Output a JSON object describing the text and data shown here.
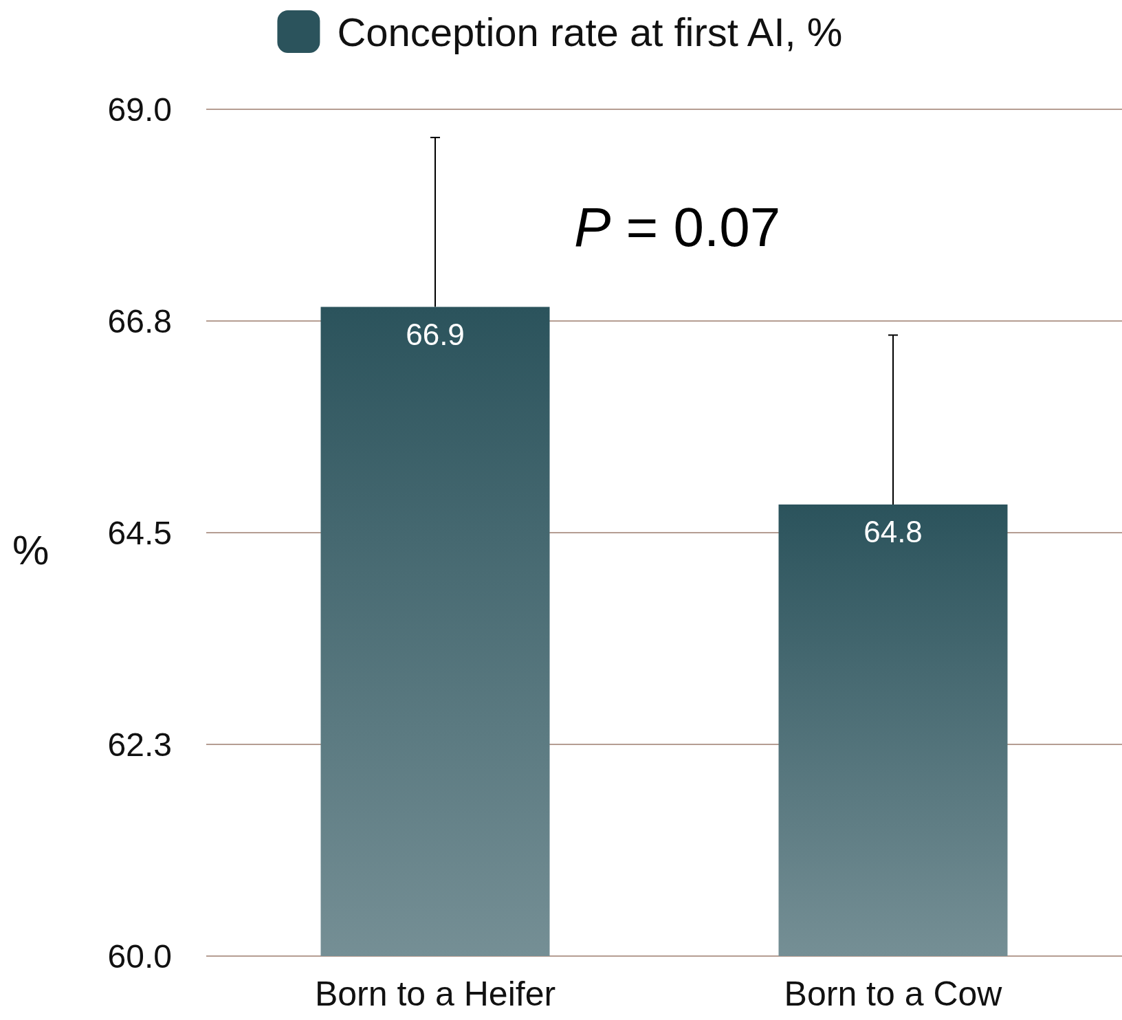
{
  "chart_data": {
    "type": "bar",
    "ylabel": "%",
    "categories": [
      "Born to a Heifer",
      "Born to a Cow"
    ],
    "series": [
      {
        "name": "Conception rate at first AI, %",
        "color": "#2b535c",
        "values": [
          66.9,
          64.8
        ],
        "errors": [
          [
            66.9,
            68.7
          ],
          [
            64.8,
            66.6
          ]
        ]
      }
    ],
    "ylim": [
      60,
      69
    ],
    "yticks": [
      {
        "value": 60,
        "label": "60.0"
      },
      {
        "value": 62.25,
        "label": "62.3"
      },
      {
        "value": 64.5,
        "label": "64.5"
      },
      {
        "value": 66.75,
        "label": "66.8"
      },
      {
        "value": 69,
        "label": "69.0"
      }
    ],
    "grid": "y",
    "legend": "top",
    "data_labels": true,
    "annotations": [
      "P = 0.07"
    ]
  }
}
